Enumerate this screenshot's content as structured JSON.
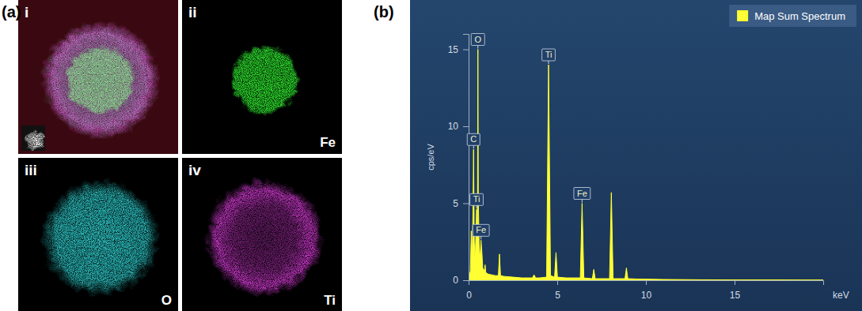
{
  "panel_labels": [
    "(a)",
    "(b)"
  ],
  "maps": {
    "overlay": {
      "label": "i"
    },
    "elements": [
      {
        "label": "ii",
        "element": "Fe",
        "color": "#2bd82b"
      },
      {
        "label": "iii",
        "element": "O",
        "color": "#2fd0d0"
      },
      {
        "label": "iv",
        "element": "Ti",
        "color": "#d43ad4"
      }
    ]
  },
  "chart_data": {
    "type": "area",
    "x_label": "keV",
    "y_label": "cps/eV",
    "x": [
      0,
      0.1,
      0.15,
      0.2,
      0.25,
      0.28,
      0.32,
      0.37,
      0.42,
      0.45,
      0.48,
      0.5,
      0.525,
      0.55,
      0.6,
      0.65,
      0.7,
      0.75,
      0.8,
      0.9,
      0.93,
      0.97,
      1.1,
      1.5,
      1.68,
      1.74,
      1.8,
      2.0,
      2.5,
      3.0,
      3.6,
      3.69,
      3.78,
      4.0,
      4.4,
      4.51,
      4.62,
      4.85,
      4.93,
      5.01,
      5.5,
      6.3,
      6.4,
      6.5,
      6.98,
      7.06,
      7.14,
      7.5,
      7.95,
      8.05,
      8.15,
      8.82,
      8.9,
      8.98,
      9.5,
      11,
      13,
      15,
      17,
      19,
      20
    ],
    "series": [
      {
        "name": "Map Sum Spectrum",
        "color": "#ffff33",
        "values": [
          0,
          0.6,
          3.2,
          1.5,
          4.5,
          8.5,
          2.5,
          1.2,
          3.5,
          4.6,
          2.0,
          4.0,
          15.0,
          5.0,
          2.0,
          1.5,
          2.6,
          1.8,
          0.8,
          0.6,
          1.0,
          0.5,
          0.4,
          0.3,
          0.3,
          1.7,
          0.3,
          0.25,
          0.2,
          0.15,
          0.15,
          0.35,
          0.15,
          0.15,
          0.2,
          14.0,
          0.3,
          0.2,
          1.8,
          0.2,
          0.15,
          0.15,
          5.0,
          0.15,
          0.1,
          0.7,
          0.1,
          0.1,
          0.1,
          5.7,
          0.1,
          0.1,
          0.8,
          0.1,
          0.08,
          0.05,
          0.03,
          0.02,
          0.02,
          0.01,
          0.01
        ]
      }
    ],
    "xlim": [
      0,
      20
    ],
    "ylim": [
      0,
      16
    ],
    "xticks": [
      0,
      5,
      10,
      15
    ],
    "yticks": [
      0,
      5,
      10,
      15
    ],
    "grid": false,
    "legend": "top right",
    "annotations": [
      {
        "text": "O",
        "x": 0.525,
        "y": 15.0
      },
      {
        "text": "C",
        "x": 0.28,
        "y": 8.5
      },
      {
        "text": "Ti",
        "x": 0.45,
        "y": 4.6
      },
      {
        "text": "Fe",
        "x": 0.7,
        "y": 2.6
      },
      {
        "text": "Ti",
        "x": 4.51,
        "y": 14.0
      },
      {
        "text": "Fe",
        "x": 6.4,
        "y": 5.0
      }
    ]
  }
}
